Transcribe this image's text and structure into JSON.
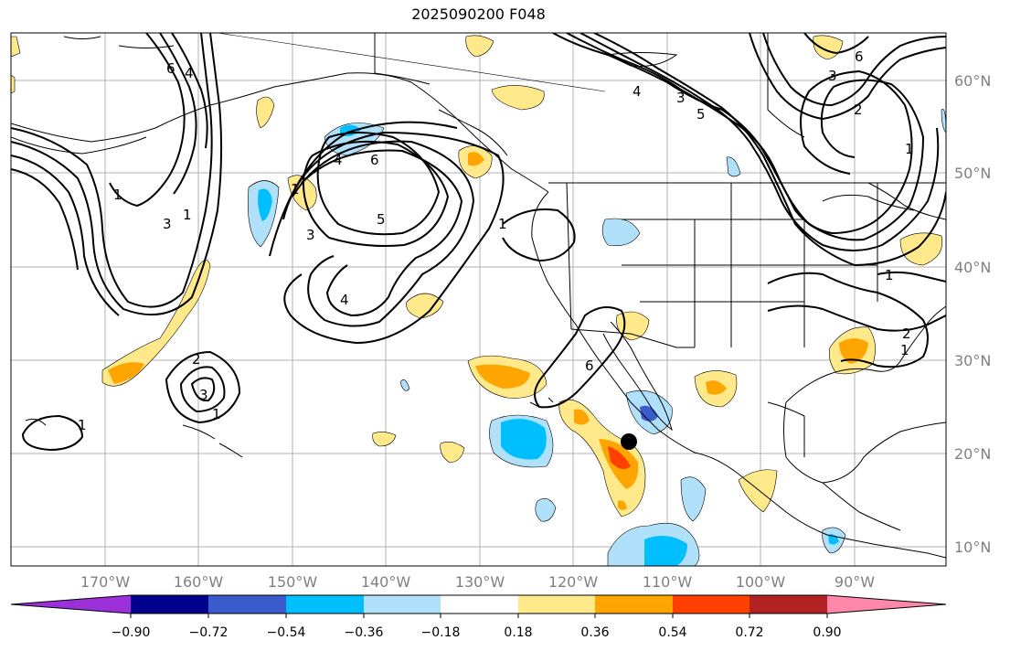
{
  "title": "2025090200 F048",
  "lat_labels": [
    "60°N",
    "50°N",
    "40°N",
    "30°N",
    "20°N",
    "10°N"
  ],
  "lon_labels": [
    "170°W",
    "160°W",
    "150°W",
    "140°W",
    "130°W",
    "120°W",
    "110°W",
    "100°W",
    "90°W"
  ],
  "colorbar": {
    "ticks": [
      "−0.90",
      "−0.72",
      "−0.54",
      "−0.36",
      "−0.18",
      "0.18",
      "0.36",
      "0.54",
      "0.72",
      "0.90"
    ],
    "colors": [
      "#9b30d9",
      "#00008b",
      "#3a5bcc",
      "#00bfff",
      "#b0e0fa",
      "#ffffff",
      "#ffe98a",
      "#ffa500",
      "#ff4000",
      "#b22222",
      "#ff88aa"
    ]
  },
  "contour_labels": [
    "6",
    "4",
    "3",
    "1",
    "4",
    "6",
    "5",
    "3",
    "1",
    "4",
    "1",
    "2",
    "3",
    "1",
    "1",
    "1",
    "6",
    "3",
    "5",
    "4",
    "3",
    "6",
    "2",
    "1",
    "1",
    "2",
    "1"
  ],
  "colors": {
    "contour": "#000000",
    "grid": "#a0a0a0",
    "coast": "#000000",
    "marker": "#000000"
  }
}
